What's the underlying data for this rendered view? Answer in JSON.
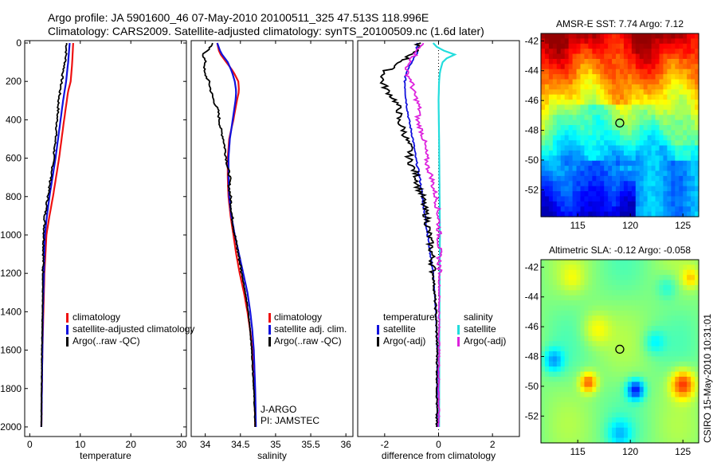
{
  "header": {
    "line1": "Argo profile: JA 5901600_46 07-May-2010 20100511_325 47.513S 118.996E",
    "line2": "Climatology: CARS2009. Satellite-adjusted climatology: synTS_20100509.nc (1.6d later)"
  },
  "side_text": "CSIRO 15-May-2010 10:31:01",
  "colors": {
    "red": "#ee1111",
    "blue": "#1111dd",
    "black": "#000000",
    "cyan": "#22dddd",
    "magenta": "#dd22dd"
  },
  "chart_data": [
    {
      "type": "line",
      "title": "",
      "xlabel": "temperature",
      "ylabel": "",
      "xlim": [
        -1,
        31
      ],
      "ylim": [
        2050,
        0
      ],
      "xticks": [
        0,
        10,
        20,
        30
      ],
      "yticks": [
        0,
        200,
        400,
        600,
        800,
        1000,
        1200,
        1400,
        1600,
        1800,
        2000
      ],
      "legend": {
        "position": "bottom-right",
        "entries": [
          "climatology",
          "satellite-adjusted climatology",
          "Argo(..raw -QC)"
        ]
      },
      "series": [
        {
          "name": "climatology",
          "color": "red",
          "depth": [
            0,
            100,
            200,
            250,
            400,
            600,
            800,
            900,
            1000,
            1200,
            1400,
            1600,
            1800,
            2000
          ],
          "values": [
            8.6,
            8.4,
            8.1,
            7.6,
            6.8,
            5.8,
            4.6,
            3.9,
            3.3,
            2.9,
            2.7,
            2.5,
            2.4,
            2.3
          ]
        },
        {
          "name": "satellite-adjusted climatology",
          "color": "blue",
          "depth": [
            0,
            100,
            200,
            300,
            400,
            500,
            600,
            700,
            800,
            900,
            1000,
            1200,
            1400,
            1600,
            1800,
            2000
          ],
          "values": [
            7.9,
            7.6,
            7.2,
            6.6,
            6.1,
            5.6,
            5.1,
            4.5,
            3.9,
            3.4,
            3.0,
            2.8,
            2.6,
            2.5,
            2.4,
            2.3
          ]
        },
        {
          "name": "Argo(..raw -QC)",
          "color": "black",
          "depth": [
            0,
            50,
            100,
            150,
            200,
            250,
            300,
            350,
            400,
            450,
            500,
            550,
            600,
            650,
            700,
            750,
            800,
            850,
            900,
            1000,
            1100,
            1200,
            1400,
            1600,
            1800,
            2000
          ],
          "values": [
            7.3,
            7.2,
            7.0,
            6.6,
            6.3,
            6.0,
            5.7,
            5.6,
            5.4,
            5.3,
            5.1,
            4.9,
            4.7,
            4.5,
            4.2,
            3.9,
            3.6,
            3.3,
            3.0,
            2.8,
            2.7,
            2.6,
            2.5,
            2.4,
            2.35,
            2.3
          ]
        }
      ]
    },
    {
      "type": "line",
      "title": "",
      "xlabel": "salinity",
      "ylabel": "",
      "xlim": [
        33.8,
        36.1
      ],
      "ylim": [
        2050,
        0
      ],
      "xticks": [
        34,
        34.5,
        35,
        35.5,
        36
      ],
      "xticklabels": [
        "34",
        "34.5",
        "35",
        "35.5",
        "36"
      ],
      "legend": {
        "position": "bottom-right",
        "entries": [
          "climatology",
          "satellite adj. clim.",
          "Argo(..raw -QC)"
        ]
      },
      "annotations": [
        "J-ARGO",
        "PI: JAMSTEC"
      ],
      "series": [
        {
          "name": "climatology",
          "color": "red",
          "depth": [
            0,
            50,
            100,
            150,
            200,
            250,
            300,
            400,
            500,
            600,
            700,
            800,
            900,
            1000,
            1100,
            1200,
            1300,
            1400,
            1500,
            1600,
            1800,
            2000
          ],
          "values": [
            34.17,
            34.2,
            34.3,
            34.4,
            34.47,
            34.48,
            34.45,
            34.4,
            34.34,
            34.32,
            34.32,
            34.33,
            34.36,
            34.4,
            34.44,
            34.49,
            34.55,
            34.6,
            34.64,
            34.67,
            34.7,
            34.71
          ]
        },
        {
          "name": "satellite adj. clim.",
          "color": "blue",
          "depth": [
            0,
            50,
            100,
            150,
            200,
            250,
            300,
            400,
            500,
            600,
            700,
            800,
            900,
            1000,
            1100,
            1200,
            1300,
            1400,
            1500,
            1600,
            1800,
            2000
          ],
          "values": [
            34.17,
            34.22,
            34.32,
            34.38,
            34.42,
            34.44,
            34.43,
            34.39,
            34.35,
            34.33,
            34.33,
            34.34,
            34.37,
            34.42,
            34.48,
            34.54,
            34.6,
            34.64,
            34.67,
            34.69,
            34.71,
            34.72
          ]
        },
        {
          "name": "Argo(..raw -QC)",
          "color": "black",
          "depth": [
            0,
            30,
            60,
            100,
            150,
            200,
            250,
            300,
            350,
            400,
            450,
            500,
            550,
            600,
            650,
            700,
            750,
            800,
            850,
            900,
            1000,
            1100,
            1200,
            1300,
            1400,
            1500,
            1600,
            1800,
            2000
          ],
          "values": [
            34.1,
            34.05,
            33.97,
            34.0,
            33.98,
            34.05,
            34.08,
            34.12,
            34.18,
            34.2,
            34.22,
            34.26,
            34.28,
            34.3,
            34.32,
            34.35,
            34.34,
            34.36,
            34.37,
            34.38,
            34.42,
            34.47,
            34.52,
            34.57,
            34.61,
            34.64,
            34.66,
            34.69,
            34.71
          ]
        }
      ]
    },
    {
      "type": "line",
      "title": "",
      "xlabel": "difference from climatology",
      "ylabel": "",
      "xlim": [
        -3,
        3
      ],
      "xticks": [
        -2,
        0,
        2
      ],
      "xticklabels": [
        "-2",
        "0",
        "2"
      ],
      "ylim": [
        2050,
        0
      ],
      "legend": {
        "position": "bottom",
        "groups": [
          {
            "heading": "temperature",
            "entries": [
              "satellite",
              "Argo(-adj)"
            ]
          },
          {
            "heading": "salinity",
            "entries": [
              "satellite",
              "Argo(-adj)"
            ]
          }
        ]
      },
      "series": [
        {
          "name": "temperature satellite",
          "color": "blue",
          "depth": [
            0,
            50,
            100,
            150,
            200,
            300,
            400,
            500,
            600,
            700,
            800,
            900,
            1000,
            1100,
            1200,
            1400,
            1600,
            1800,
            2000
          ],
          "values": [
            -0.8,
            -0.8,
            -1.0,
            -1.2,
            -1.25,
            -1.2,
            -1.1,
            -0.95,
            -0.85,
            -0.7,
            -0.6,
            -0.5,
            -0.4,
            -0.3,
            -0.2,
            -0.1,
            -0.05,
            -0.05,
            -0.05
          ]
        },
        {
          "name": "temperature Argo(-adj)",
          "color": "black",
          "depth": [
            0,
            50,
            100,
            150,
            200,
            250,
            300,
            350,
            400,
            450,
            500,
            550,
            600,
            650,
            700,
            750,
            800,
            850,
            900,
            1000,
            1100,
            1200,
            1300,
            1400,
            1600,
            1800,
            2000
          ],
          "values": [
            -0.7,
            -0.9,
            -1.4,
            -2.0,
            -2.1,
            -1.9,
            -1.6,
            -1.45,
            -1.5,
            -1.3,
            -1.2,
            -1.05,
            -1.1,
            -0.95,
            -0.8,
            -0.75,
            -0.6,
            -0.55,
            -0.45,
            -0.35,
            -0.25,
            -0.2,
            -0.15,
            -0.1,
            -0.05,
            -0.05,
            -0.08
          ]
        },
        {
          "name": "salinity satellite",
          "color": "cyan",
          "depth": [
            0,
            30,
            60,
            80,
            100,
            150,
            200,
            300,
            500,
            1000,
            1500,
            2000
          ],
          "values": [
            -0.2,
            0.0,
            0.6,
            0.3,
            0.15,
            0.05,
            0.02,
            0.0,
            0.02,
            0.05,
            0.03,
            0.02
          ]
        },
        {
          "name": "salinity Argo(-adj)",
          "color": "magenta",
          "depth": [
            0,
            50,
            100,
            150,
            200,
            250,
            300,
            350,
            400,
            450,
            500,
            550,
            600,
            650,
            700,
            750,
            800,
            850,
            900,
            1000,
            1100,
            1200,
            1400,
            1600,
            1800,
            2000
          ],
          "values": [
            -0.6,
            -0.8,
            -1.1,
            -1.2,
            -1.0,
            -0.95,
            -0.8,
            -0.7,
            -0.8,
            -0.65,
            -0.55,
            -0.5,
            -0.45,
            -0.4,
            -0.25,
            -0.2,
            -0.1,
            -0.05,
            0.0,
            0.02,
            0.03,
            0.03,
            0.02,
            0.02,
            0.01,
            0.01
          ]
        }
      ]
    },
    {
      "type": "heatmap",
      "title": "AMSR-E SST: 7.74 Argo: 7.12",
      "xlim": [
        111.5,
        126.5
      ],
      "ylim": [
        -53.8,
        -41.5
      ],
      "xticks": [
        115,
        120,
        125
      ],
      "yticks": [
        -42,
        -44,
        -46,
        -48,
        -50,
        -52
      ],
      "marker": {
        "lon": 118.996,
        "lat": -47.513
      }
    },
    {
      "type": "heatmap",
      "title": "Altimetric SLA: -0.12 Argo: -0.058",
      "xlim": [
        111.5,
        126.5
      ],
      "ylim": [
        -53.8,
        -41.5
      ],
      "xticks": [
        115,
        120,
        125
      ],
      "yticks": [
        -42,
        -44,
        -46,
        -48,
        -50,
        -52
      ],
      "marker": {
        "lon": 118.996,
        "lat": -47.513
      }
    }
  ]
}
